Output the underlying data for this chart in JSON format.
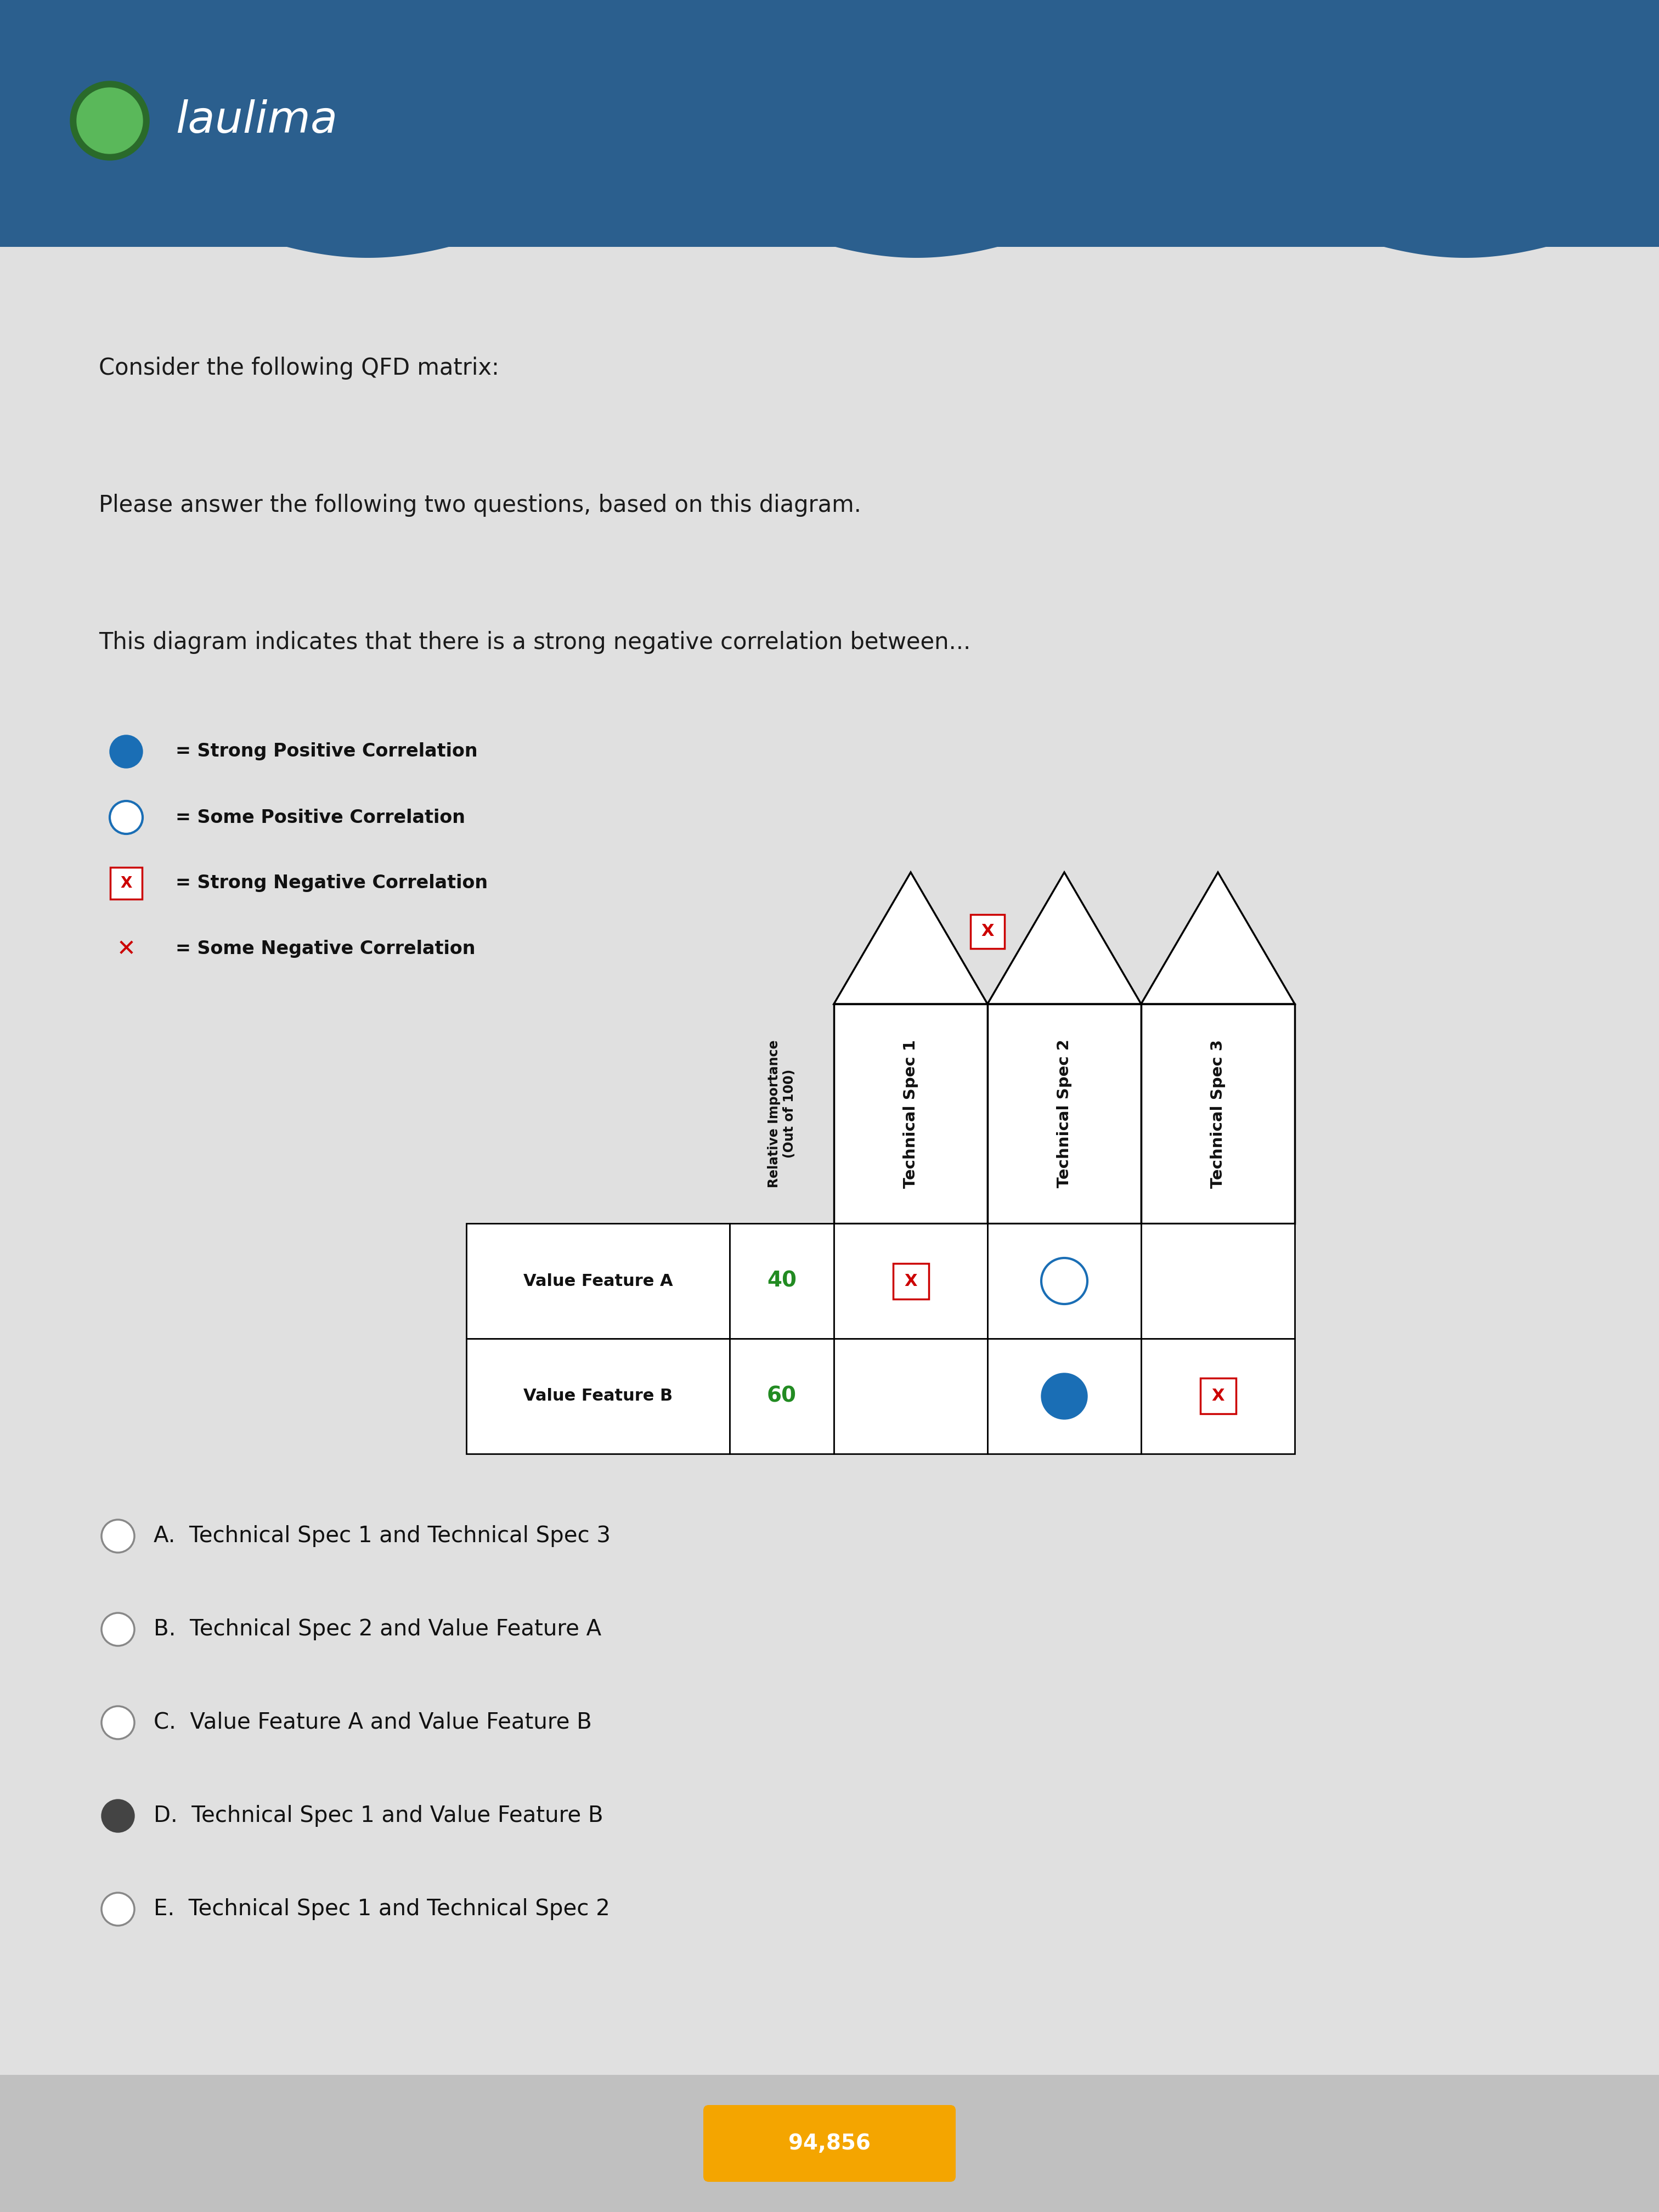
{
  "header_bg_color": "#2B5F8E",
  "body_bg_color": "#E0E0E0",
  "text1": "Consider the following QFD matrix:",
  "text2": "Please answer the following two questions, based on this diagram.",
  "text3": "This diagram indicates that there is a strong negative correlation between...",
  "legend_items": [
    {
      "symbol": "filled_circle",
      "color": "#1a6eb5",
      "text": "= Strong Positive Correlation"
    },
    {
      "symbol": "open_circle",
      "color": "#1a6eb5",
      "text": "= Some Positive Correlation"
    },
    {
      "symbol": "boxed_x",
      "color": "#cc0000",
      "text": "= Strong Negative Correlation"
    },
    {
      "symbol": "x_mark",
      "color": "#cc0000",
      "text": "= Some Negative Correlation"
    }
  ],
  "col_headers": [
    "Relative Importance\n(Out of 100)",
    "Technical Spec 1",
    "Technical Spec 2",
    "Technical Spec 3"
  ],
  "matrix_data": {
    "row_labels": [
      "Value Feature A",
      "Value Feature B"
    ],
    "rel_importance": [
      "40",
      "60"
    ],
    "cells": [
      [
        "strong_neg",
        "some_pos",
        ""
      ],
      [
        "",
        "strong_pos",
        "strong_neg"
      ]
    ]
  },
  "roof_correlation": "strong_neg",
  "answer_choices": [
    {
      "letter": "A",
      "text": "Technical Spec 1 and Technical Spec 3",
      "selected": false
    },
    {
      "letter": "B",
      "text": "Technical Spec 2 and Value Feature A",
      "selected": false
    },
    {
      "letter": "C",
      "text": "Value Feature A and Value Feature B",
      "selected": false
    },
    {
      "letter": "D",
      "text": "Technical Spec 1 and Value Feature B",
      "selected": true
    },
    {
      "letter": "E",
      "text": "Technical Spec 1 and Technical Spec 2",
      "selected": false
    }
  ],
  "footer_text": "94,856",
  "footer_bg": "#F4A500"
}
